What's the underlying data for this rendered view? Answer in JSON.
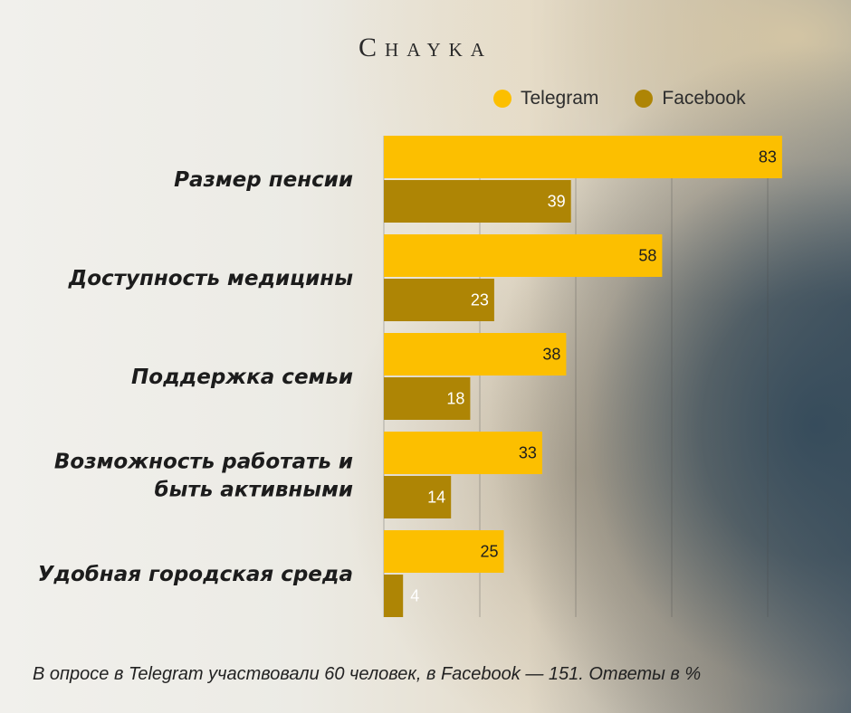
{
  "brand": "Chayka",
  "colors": {
    "telegram": "#fcbf00",
    "facebook": "#ae8505"
  },
  "chart_data": {
    "type": "bar",
    "orientation": "horizontal",
    "categories": [
      "Размер пенсии",
      "Доступность медицины",
      "Поддержка семьи",
      "Возможность работать и быть активными",
      "Удобная городская среда"
    ],
    "series": [
      {
        "name": "Telegram",
        "values": [
          83,
          58,
          38,
          33,
          25
        ]
      },
      {
        "name": "Facebook",
        "values": [
          39,
          23,
          18,
          14,
          4
        ]
      }
    ],
    "xlim": [
      0,
      90
    ],
    "grid": true,
    "legend": "top-right",
    "title": "",
    "xlabel": "",
    "ylabel": ""
  },
  "footnote": "В опросе в Telegram участвовали 60 человек, в Facebook — 151. Ответы в %"
}
